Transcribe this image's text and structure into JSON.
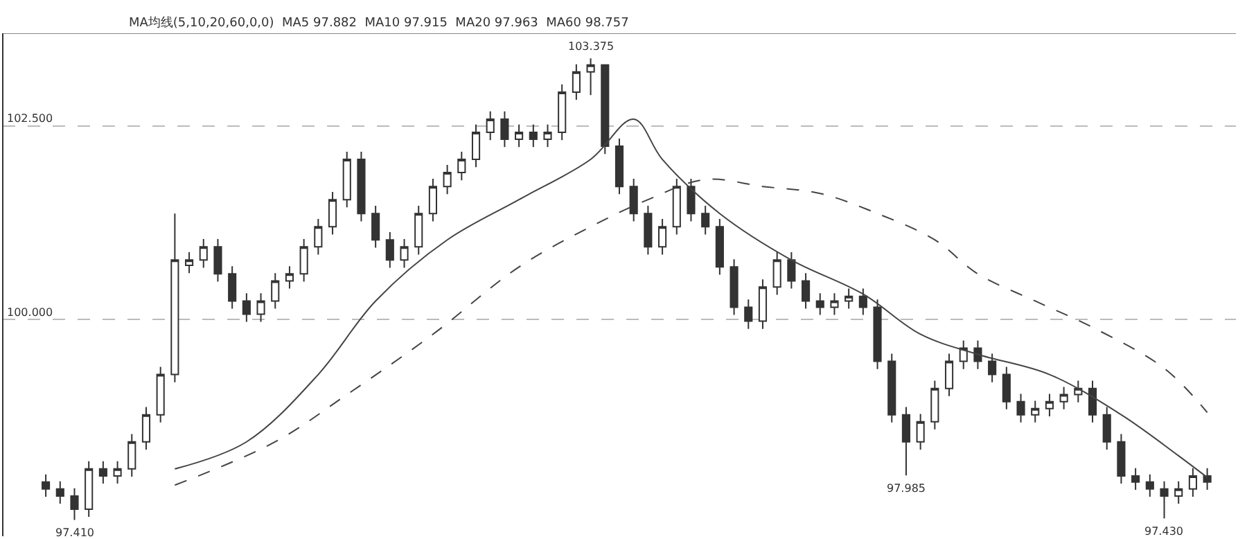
{
  "chart_data": {
    "type": "candlestick",
    "subtitle": "MA均线(5,10,20,60,0,0)  MA5 97.882  MA10 97.915  MA20 97.963  MA60 98.757",
    "categories": [
      null,
      null,
      null,
      null,
      null,
      null,
      null,
      null,
      null,
      null,
      null,
      null,
      null,
      null,
      null,
      null,
      null,
      null,
      null,
      null,
      null,
      null,
      null,
      null,
      null,
      null,
      null,
      null,
      null,
      null,
      null,
      null,
      null,
      null,
      null,
      null,
      null,
      null,
      null,
      null,
      null,
      null,
      null,
      null,
      null,
      null,
      null,
      null,
      null,
      null,
      null,
      null,
      null,
      null,
      null,
      null,
      null,
      null,
      null,
      null,
      null,
      null,
      null,
      null,
      null,
      null,
      null,
      null,
      null,
      null,
      null,
      null,
      null,
      null,
      null,
      null,
      null,
      null,
      null,
      null,
      null,
      null
    ],
    "ylim": [
      97.2,
      103.7
    ],
    "yticks": [
      {
        "value": 100,
        "label": "100.000"
      },
      {
        "value": 102.5,
        "label": "102.500"
      }
    ],
    "grid": "y",
    "tick_labels": "y",
    "series": [
      {
        "color": "#333333",
        "ohlc": [
          [
            97.9,
            98.0,
            97.71,
            97.81
          ],
          [
            97.81,
            97.91,
            97.62,
            97.72
          ],
          [
            97.72,
            97.82,
            97.41,
            97.55
          ],
          [
            97.55,
            98.17,
            97.45,
            98.07
          ],
          [
            98.07,
            98.17,
            97.88,
            97.98
          ],
          [
            97.98,
            98.17,
            97.88,
            98.07
          ],
          [
            98.07,
            98.52,
            97.97,
            98.42
          ],
          [
            98.42,
            98.87,
            98.32,
            98.77
          ],
          [
            98.77,
            99.39,
            98.67,
            99.29
          ],
          [
            99.29,
            101.37,
            99.19,
            100.77
          ],
          [
            100.7,
            100.87,
            100.6,
            100.77
          ],
          [
            100.77,
            101.04,
            100.67,
            100.94
          ],
          [
            100.94,
            101.04,
            100.49,
            100.59
          ],
          [
            100.59,
            100.69,
            100.14,
            100.24
          ],
          [
            100.24,
            100.34,
            99.97,
            100.07
          ],
          [
            100.07,
            100.34,
            99.97,
            100.24
          ],
          [
            100.24,
            100.6,
            100.14,
            100.5
          ],
          [
            100.5,
            100.69,
            100.4,
            100.59
          ],
          [
            100.59,
            101.04,
            100.49,
            100.94
          ],
          [
            100.94,
            101.3,
            100.84,
            101.2
          ],
          [
            101.2,
            101.65,
            101.1,
            101.55
          ],
          [
            101.55,
            102.17,
            101.45,
            102.07
          ],
          [
            102.07,
            102.17,
            101.27,
            101.37
          ],
          [
            101.37,
            101.47,
            100.93,
            101.03
          ],
          [
            101.03,
            101.13,
            100.67,
            100.77
          ],
          [
            100.77,
            101.04,
            100.67,
            100.94
          ],
          [
            100.94,
            101.47,
            100.84,
            101.37
          ],
          [
            101.37,
            101.82,
            101.27,
            101.72
          ],
          [
            101.72,
            102.0,
            101.62,
            101.9
          ],
          [
            101.9,
            102.17,
            101.8,
            102.07
          ],
          [
            102.07,
            102.52,
            101.97,
            102.42
          ],
          [
            102.42,
            102.69,
            102.32,
            102.59
          ],
          [
            102.59,
            102.69,
            102.23,
            102.33
          ],
          [
            102.33,
            102.52,
            102.23,
            102.42
          ],
          [
            102.42,
            102.52,
            102.23,
            102.33
          ],
          [
            102.33,
            102.52,
            102.23,
            102.42
          ],
          [
            102.42,
            103.04,
            102.32,
            102.94
          ],
          [
            102.94,
            103.3,
            102.84,
            103.2
          ],
          [
            103.2,
            103.375,
            102.9,
            103.29
          ],
          [
            103.29,
            103.3,
            102.14,
            102.24
          ],
          [
            102.24,
            102.34,
            101.62,
            101.72
          ],
          [
            101.72,
            101.82,
            101.27,
            101.37
          ],
          [
            101.37,
            101.47,
            100.84,
            100.94
          ],
          [
            100.94,
            101.3,
            100.84,
            101.2
          ],
          [
            101.2,
            101.82,
            101.1,
            101.72
          ],
          [
            101.72,
            101.82,
            101.27,
            101.37
          ],
          [
            101.37,
            101.47,
            101.1,
            101.2
          ],
          [
            101.2,
            101.3,
            100.58,
            100.68
          ],
          [
            100.68,
            100.78,
            100.06,
            100.16
          ],
          [
            100.16,
            100.26,
            99.88,
            99.98
          ],
          [
            99.98,
            100.52,
            99.88,
            100.42
          ],
          [
            100.42,
            100.87,
            100.32,
            100.77
          ],
          [
            100.77,
            100.87,
            100.4,
            100.5
          ],
          [
            100.5,
            100.6,
            100.14,
            100.24
          ],
          [
            100.24,
            100.34,
            100.06,
            100.16
          ],
          [
            100.16,
            100.34,
            100.06,
            100.24
          ],
          [
            100.24,
            100.4,
            100.14,
            100.3
          ],
          [
            100.3,
            100.4,
            100.06,
            100.16
          ],
          [
            100.16,
            100.26,
            99.36,
            99.46
          ],
          [
            99.46,
            99.56,
            98.67,
            98.77
          ],
          [
            98.77,
            98.87,
            97.985,
            98.42
          ],
          [
            98.42,
            98.78,
            98.32,
            98.68
          ],
          [
            98.68,
            99.21,
            98.58,
            99.11
          ],
          [
            99.11,
            99.56,
            99.01,
            99.46
          ],
          [
            99.46,
            99.73,
            99.36,
            99.63
          ],
          [
            99.63,
            99.73,
            99.36,
            99.46
          ],
          [
            99.46,
            99.56,
            99.19,
            99.29
          ],
          [
            99.29,
            99.39,
            98.84,
            98.94
          ],
          [
            98.94,
            99.04,
            98.67,
            98.77
          ],
          [
            98.77,
            98.95,
            98.67,
            98.85
          ],
          [
            98.85,
            99.04,
            98.75,
            98.94
          ],
          [
            98.94,
            99.13,
            98.84,
            99.03
          ],
          [
            99.03,
            99.21,
            98.93,
            99.11
          ],
          [
            99.11,
            99.21,
            98.67,
            98.77
          ],
          [
            98.77,
            98.87,
            98.32,
            98.42
          ],
          [
            98.42,
            98.52,
            97.88,
            97.98
          ],
          [
            97.98,
            98.08,
            97.8,
            97.9
          ],
          [
            97.9,
            98.0,
            97.71,
            97.81
          ],
          [
            97.81,
            97.91,
            97.43,
            97.72
          ],
          [
            97.72,
            97.91,
            97.62,
            97.81
          ],
          [
            97.81,
            98.08,
            97.71,
            97.98
          ],
          [
            97.98,
            98.08,
            97.8,
            97.9
          ]
        ]
      },
      {
        "type": "line",
        "color": "#444444",
        "line_style": "dashed",
        "values": [
          null,
          null,
          null,
          null,
          null,
          null,
          null,
          null,
          null,
          97.86,
          null,
          null,
          null,
          null,
          null,
          null,
          98.42,
          null,
          null,
          null,
          null,
          99.03,
          null,
          null,
          null,
          null,
          null,
          99.81,
          null,
          null,
          null,
          null,
          null,
          100.68,
          null,
          null,
          null,
          null,
          101.2,
          null,
          null,
          null,
          101.55,
          null,
          null,
          null,
          101.81,
          null,
          null,
          null,
          101.72,
          null,
          null,
          null,
          101.63,
          null,
          null,
          null,
          101.37,
          null,
          null,
          null,
          101.03,
          null,
          null,
          100.59,
          null,
          null,
          null,
          100.24,
          null,
          null,
          null,
          99.9,
          null,
          null,
          null,
          null,
          99.37,
          null,
          null,
          98.8
        ]
      },
      {
        "type": "line",
        "color": "#444444",
        "line_style": "solid",
        "values": [
          null,
          null,
          null,
          null,
          null,
          null,
          null,
          null,
          null,
          98.07,
          null,
          null,
          null,
          null,
          98.42,
          null,
          null,
          null,
          null,
          99.29,
          null,
          null,
          null,
          100.24,
          null,
          null,
          null,
          null,
          101.03,
          null,
          null,
          null,
          null,
          101.55,
          null,
          null,
          null,
          null,
          102.07,
          null,
          null,
          102.59,
          null,
          102.07,
          null,
          null,
          null,
          101.37,
          null,
          null,
          null,
          null,
          100.77,
          null,
          null,
          null,
          null,
          100.33,
          null,
          null,
          null,
          99.81,
          null,
          null,
          null,
          99.55,
          null,
          null,
          null,
          null,
          99.29,
          null,
          null,
          null,
          null,
          98.77,
          null,
          null,
          null,
          98.24,
          null,
          97.96
        ]
      }
    ],
    "annotations": [
      {
        "text": "103.375",
        "y": 103.375
      },
      {
        "text": "97.985",
        "y": 97.985
      },
      {
        "text": "97.410",
        "y": 97.41
      },
      {
        "text": "97.430",
        "y": 97.43
      }
    ]
  }
}
